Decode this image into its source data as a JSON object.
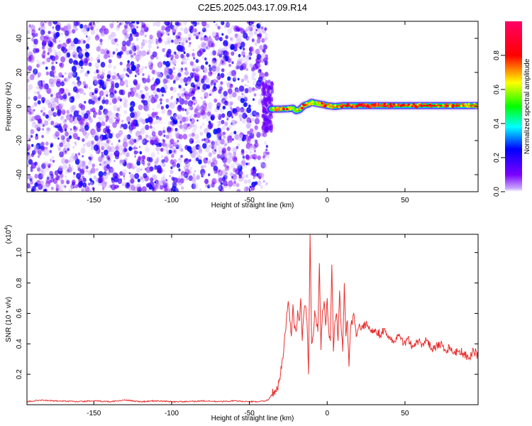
{
  "figure": {
    "title": "C2E5.2025.043.17.09.R14"
  },
  "chart_data": [
    {
      "type": "heatmap",
      "xlabel": "Height of straight line (km)",
      "ylabel": "Frequency (Hz)",
      "xlim": [
        -193,
        97
      ],
      "ylim": [
        -50,
        50
      ],
      "xticks": [
        -150,
        -100,
        -50,
        0,
        50
      ],
      "yticks": [
        -40,
        -20,
        0,
        20,
        40
      ],
      "grid": false,
      "colorbar": {
        "label": "Normalized spectral amplitude",
        "range": [
          0,
          1
        ],
        "ticks": [
          0.0,
          0.2,
          0.4,
          0.6,
          0.8
        ],
        "colors": [
          "#ffffff",
          "#7a00ff",
          "#0000ff",
          "#00ffff",
          "#00ff00",
          "#ffff00",
          "#ff0000",
          "#ff0066"
        ]
      },
      "noise_region": {
        "x_range": [
          -193,
          -38
        ],
        "typical_amplitude": 0.1
      },
      "signal_ridge": {
        "x": [
          -36,
          -30,
          -25,
          -22,
          -20,
          -18,
          -15,
          -12,
          -10,
          -8,
          -5,
          -2,
          0,
          5,
          10,
          20,
          40,
          60,
          80,
          97
        ],
        "frequency": [
          -1.5,
          -1.5,
          -1.3,
          -1.0,
          -2.5,
          -2.0,
          0.5,
          1.5,
          2.5,
          2.0,
          1.5,
          1.0,
          0.5,
          0.0,
          0.5,
          0.5,
          0.5,
          0.5,
          0.5,
          0.5
        ],
        "amplitude": [
          0.6,
          0.85,
          0.8,
          0.55,
          0.7,
          0.75,
          0.8,
          0.7,
          0.65,
          0.6,
          0.7,
          0.85,
          0.75,
          0.7,
          0.85,
          0.95,
          0.9,
          0.85,
          0.85,
          0.7
        ]
      }
    },
    {
      "type": "line",
      "xlabel": "Height of straight line (km)",
      "ylabel": "SNR (10 * v/v)",
      "y_multiplier": "(x10",
      "y_multiplier_exp": "4",
      "y_multiplier_close": ")",
      "xlim": [
        -193,
        97
      ],
      "ylim": [
        0,
        1.12
      ],
      "xticks": [
        -150,
        -100,
        -50,
        0,
        50
      ],
      "yticks": [
        0.2,
        0.4,
        0.6,
        0.8,
        1.0
      ],
      "grid": false,
      "series": [
        {
          "color": "#e8312f",
          "x": [
            -193,
            -185,
            -175,
            -160,
            -150,
            -140,
            -130,
            -120,
            -110,
            -100,
            -90,
            -80,
            -70,
            -60,
            -50,
            -45,
            -40,
            -38,
            -36,
            -34,
            -32,
            -30,
            -28,
            -26,
            -25,
            -24,
            -23,
            -22,
            -21,
            -20,
            -19,
            -18,
            -17,
            -16,
            -15,
            -14,
            -13,
            -12,
            -11,
            -10,
            -9,
            -8,
            -7,
            -6,
            -5,
            -4,
            -3,
            -2,
            -1,
            0,
            1,
            2,
            3,
            4,
            5,
            6,
            7,
            8,
            9,
            10,
            11,
            12,
            13,
            14,
            15,
            17,
            19,
            21,
            23,
            25,
            28,
            31,
            34,
            37,
            40,
            43,
            46,
            49,
            52,
            55,
            58,
            61,
            64,
            67,
            70,
            73,
            76,
            79,
            82,
            85,
            88,
            91,
            94,
            97
          ],
          "y": [
            0.02,
            0.03,
            0.025,
            0.02,
            0.025,
            0.02,
            0.03,
            0.02,
            0.025,
            0.02,
            0.02,
            0.025,
            0.02,
            0.025,
            0.02,
            0.02,
            0.025,
            0.03,
            0.06,
            0.09,
            0.1,
            0.2,
            0.35,
            0.6,
            0.68,
            0.55,
            0.45,
            0.66,
            0.5,
            0.48,
            0.62,
            0.55,
            0.7,
            0.42,
            0.6,
            0.65,
            0.55,
            0.2,
            1.12,
            0.4,
            0.45,
            0.62,
            0.55,
            0.48,
            0.93,
            0.36,
            0.62,
            0.68,
            0.52,
            0.7,
            0.48,
            0.42,
            0.92,
            0.35,
            0.55,
            0.6,
            0.42,
            0.75,
            0.5,
            0.35,
            0.8,
            0.45,
            0.55,
            0.25,
            0.5,
            0.6,
            0.45,
            0.52,
            0.5,
            0.54,
            0.48,
            0.5,
            0.46,
            0.5,
            0.44,
            0.42,
            0.45,
            0.4,
            0.44,
            0.38,
            0.42,
            0.4,
            0.42,
            0.37,
            0.39,
            0.4,
            0.36,
            0.38,
            0.34,
            0.36,
            0.33,
            0.3,
            0.36,
            0.32
          ]
        }
      ]
    }
  ]
}
